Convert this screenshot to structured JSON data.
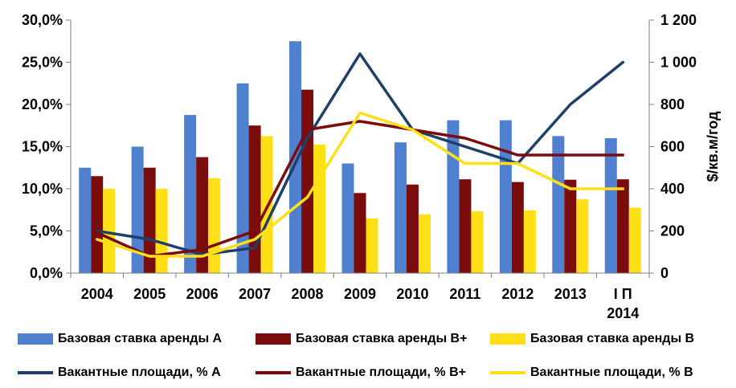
{
  "chart_data": {
    "type": "bar",
    "categories": [
      "2004",
      "2005",
      "2006",
      "2007",
      "2008",
      "2009",
      "2010",
      "2011",
      "2012",
      "2013",
      "I П 2014"
    ],
    "y_left": {
      "ticks": [
        "0,0%",
        "5,0%",
        "10,0%",
        "15,0%",
        "20,0%",
        "25,0%",
        "30,0%"
      ],
      "range": [
        0,
        30
      ]
    },
    "y_right": {
      "label": "$/кв.м/год",
      "ticks": [
        "0",
        "200",
        "400",
        "600",
        "800",
        "1 000",
        "1 200"
      ],
      "range": [
        0,
        1200
      ]
    },
    "grid": false,
    "legend_position": "bottom",
    "bar_series": [
      {
        "name": "Базовая ставка аренды A",
        "color": "#4F81D0",
        "values": [
          500,
          600,
          750,
          900,
          1100,
          520,
          620,
          725,
          725,
          650,
          640
        ]
      },
      {
        "name": "Базовая ставка аренды B+",
        "color": "#7B0C0C",
        "values": [
          460,
          500,
          550,
          700,
          870,
          380,
          420,
          445,
          432,
          443,
          445
        ]
      },
      {
        "name": "Базовая ставка аренды B",
        "color": "#FFE017",
        "values": [
          400,
          400,
          450,
          650,
          610,
          260,
          278,
          293,
          298,
          350,
          310
        ]
      }
    ],
    "line_series": [
      {
        "name": "Вакантные площади, % A",
        "color": "#1F3F6B",
        "values": [
          5.0,
          4.0,
          2.2,
          3.0,
          16.0,
          26.0,
          17.0,
          15.0,
          13.0,
          20.0,
          25.0
        ]
      },
      {
        "name": "Вакантные площади, % B+",
        "color": "#7B0C0C",
        "values": [
          4.8,
          2.0,
          2.8,
          5.0,
          17.0,
          18.0,
          17.0,
          16.0,
          14.0,
          14.0,
          14.0
        ]
      },
      {
        "name": "Вакантные площади, % B",
        "color": "#FFE017",
        "values": [
          4.0,
          2.0,
          2.0,
          4.0,
          9.0,
          19.0,
          17.0,
          13.0,
          13.0,
          10.0,
          10.0
        ]
      }
    ]
  }
}
